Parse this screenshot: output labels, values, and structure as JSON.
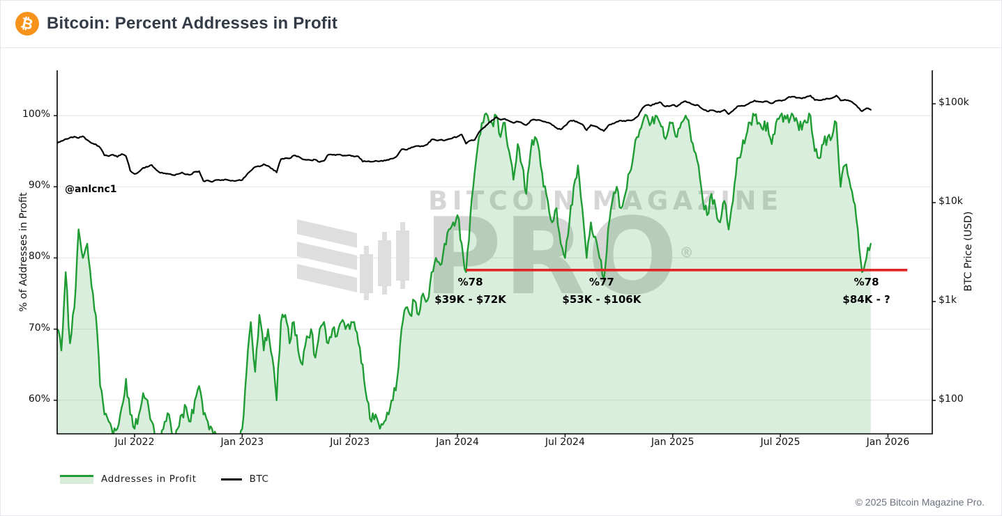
{
  "header": {
    "title": "Bitcoin: Percent Addresses in Profit",
    "logo_symbol": "₿"
  },
  "handle": "@anlcnc1",
  "watermark": {
    "line1": "BITCOIN MAGAZINE",
    "line2": "PRO",
    "reg": "®"
  },
  "legend": {
    "area_label": "Addresses in Profit",
    "line_label": "BTC"
  },
  "footer": {
    "copyright": "© 2025 Bitcoin Magazine Pro."
  },
  "colors": {
    "green_line": "#1f9c33",
    "green_fill": "rgba(31,156,51,0.17)",
    "btc_line": "#000000",
    "red_line": "#e02424",
    "grid": "#e8e8e8",
    "axis": "#000000",
    "brand_orange": "#f7931a"
  },
  "chart_data": {
    "type": "line",
    "title": "Bitcoin: Percent Addresses in Profit",
    "xlabel": "",
    "left_ylabel": "% of Addresses in Profit",
    "right_ylabel": "BTC Price (USD)",
    "left_ylim": [
      55.2,
      106.4
    ],
    "right_yscale": "log",
    "right_ylim": [
      100,
      200000
    ],
    "grid": "horizontal-only",
    "legend_position": "bottom-left",
    "t_start": 2022.14,
    "t_step": 0.02,
    "x_ticks": [
      {
        "label": "Jul 2022",
        "value": 2022.5
      },
      {
        "label": "Jan 2023",
        "value": 2023.0
      },
      {
        "label": "Jul 2023",
        "value": 2023.5
      },
      {
        "label": "Jan 2024",
        "value": 2024.0
      },
      {
        "label": "Jul 2024",
        "value": 2024.5
      },
      {
        "label": "Jan 2025",
        "value": 2025.0
      },
      {
        "label": "Jul 2025",
        "value": 2025.5
      },
      {
        "label": "Jan 2026",
        "value": 2026.0
      }
    ],
    "left_ticks": [
      {
        "label": "100%",
        "value": 100
      },
      {
        "label": "90%",
        "value": 90
      },
      {
        "label": "80%",
        "value": 80
      },
      {
        "label": "70%",
        "value": 70
      },
      {
        "label": "60%",
        "value": 60
      }
    ],
    "right_ticks": [
      {
        "label": "$100k",
        "value": 100000
      },
      {
        "label": "$10k",
        "value": 10000
      },
      {
        "label": "$1k",
        "value": 1000
      },
      {
        "label": "$100",
        "value": 100
      }
    ],
    "red_line": {
      "pct": 78.3,
      "t_start": 2024.04,
      "t_end": 2026.09
    },
    "annotations": [
      {
        "t": 2024.06,
        "pct_label": "%78",
        "range_label": "$39K - $72K"
      },
      {
        "t": 2024.67,
        "pct_label": "%77",
        "range_label": "$53K - $106K"
      },
      {
        "t": 2025.9,
        "pct_label": "%78",
        "range_label": "$84K - ?"
      }
    ],
    "series": [
      {
        "name": "Addresses in Profit",
        "axis": "left",
        "style": "area",
        "unit": "%",
        "values": [
          70,
          67,
          78,
          68,
          73,
          84,
          80,
          82,
          76,
          72,
          62,
          58,
          57,
          55,
          56,
          59,
          63,
          58,
          56,
          58,
          61,
          60,
          57,
          55,
          54,
          57,
          58,
          54,
          56,
          58,
          59,
          57,
          60,
          62,
          58,
          57,
          56,
          55,
          53,
          52,
          54,
          53,
          54,
          56,
          64,
          71,
          64,
          72,
          67,
          70,
          66,
          60,
          71,
          72,
          68,
          71,
          67,
          65,
          69,
          70,
          66,
          70,
          71,
          68,
          70,
          69,
          71,
          70,
          70,
          71,
          68,
          65,
          60,
          57,
          58,
          56,
          57,
          58,
          60,
          63,
          70,
          73,
          72,
          74,
          72,
          75,
          74,
          78,
          80,
          79,
          82,
          84,
          85,
          86,
          82,
          78,
          86,
          92,
          97,
          99,
          100,
          99,
          100,
          97,
          99,
          95,
          91,
          96,
          93,
          89,
          95,
          97,
          95,
          90,
          88,
          85,
          87,
          82,
          80,
          85,
          90,
          93,
          87,
          80,
          85,
          83,
          80,
          77,
          84,
          88,
          90,
          87,
          89,
          92,
          95,
          97,
          99,
          100,
          99,
          100,
          99,
          97,
          98,
          99,
          97,
          99,
          100,
          98,
          95,
          93,
          88,
          86,
          89,
          87,
          85,
          88,
          84,
          88,
          94,
          95,
          97,
          99,
          100,
          99,
          98,
          99,
          96,
          99,
          100,
          100,
          99,
          100,
          99,
          98,
          99,
          100,
          95,
          94,
          96,
          97,
          97,
          99,
          90,
          93,
          91,
          88,
          84,
          78,
          80,
          82
        ]
      },
      {
        "name": "BTC",
        "axis": "right",
        "style": "line",
        "unit": "USD",
        "values": [
          40000,
          42000,
          44000,
          45500,
          46500,
          45000,
          47000,
          43000,
          40000,
          39000,
          36000,
          30000,
          29500,
          30500,
          29000,
          31000,
          29500,
          21000,
          19500,
          20500,
          22500,
          23000,
          24000,
          21500,
          20000,
          19800,
          19500,
          19000,
          19400,
          20200,
          19300,
          19200,
          20500,
          20800,
          16500,
          16800,
          16200,
          17000,
          16800,
          17200,
          16800,
          16600,
          16800,
          16900,
          19000,
          21000,
          23000,
          23200,
          24500,
          23500,
          22000,
          20200,
          27500,
          28200,
          28000,
          30000,
          29400,
          27500,
          27000,
          26800,
          27200,
          25800,
          26500,
          30500,
          30400,
          30600,
          30300,
          29900,
          30200,
          29200,
          29300,
          26000,
          26100,
          25900,
          26500,
          26300,
          26800,
          27000,
          27900,
          29800,
          34500,
          34200,
          35500,
          36800,
          37500,
          37200,
          38700,
          43500,
          42800,
          43200,
          42500,
          44000,
          45500,
          46500,
          48800,
          39500,
          42500,
          43000,
          51500,
          57000,
          62000,
          68000,
          73000,
          69000,
          70500,
          67000,
          64000,
          66000,
          63800,
          60800,
          67500,
          69000,
          68500,
          66000,
          64500,
          61000,
          57000,
          55000,
          60000,
          66500,
          68000,
          64500,
          62000,
          54000,
          61000,
          59000,
          56000,
          53000,
          60000,
          63000,
          65800,
          67500,
          66500,
          68000,
          69500,
          75500,
          90500,
          97000,
          95500,
          101000,
          104000,
          95000,
          94500,
          97500,
          94000,
          102000,
          106000,
          102000,
          97000,
          96000,
          88000,
          84000,
          86000,
          83500,
          82500,
          87000,
          78500,
          85000,
          94000,
          95500,
          97000,
          103000,
          108000,
          105000,
          104000,
          105500,
          101000,
          107000,
          108000,
          109000,
          117500,
          118000,
          115000,
          113000,
          117000,
          121000,
          109000,
          108500,
          111000,
          112500,
          114000,
          121000,
          108000,
          110000,
          107000,
          101000,
          92000,
          84000,
          90000,
          87000
        ]
      }
    ]
  }
}
